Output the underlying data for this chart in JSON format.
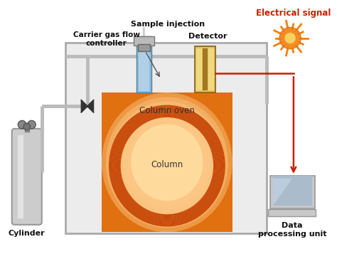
{
  "labels": {
    "carrier": "Carrier gas flow\ncontroller",
    "sample": "Sample injection",
    "detector": "Detector",
    "electrical": "Electrical signal",
    "column_oven": "Column oven",
    "column": "Column",
    "cylinder": "Cylinder",
    "data_unit": "Data\nprocessing unit"
  },
  "colors": {
    "oven_light": "#FDDCAA",
    "oven_mid": "#F5A030",
    "oven_dark": "#E07010",
    "column_coil": "#C84B0A",
    "detector_gold": "#E8C060",
    "detector_stripe": "#A07820",
    "detector_dark": "#806010",
    "sample_blue_light": "#C8DFF0",
    "sample_blue": "#90BBD8",
    "sample_blue_dark": "#5080A0",
    "pipe_gray": "#BBBBBB",
    "pipe_outline": "#999999",
    "cylinder_body": "#CCCCCC",
    "cylinder_dark": "#999999",
    "computer_gray": "#C8C8C8",
    "computer_screen": "#AABBCC",
    "computer_screen2": "#8899BB",
    "sun_orange": "#F08010",
    "sun_center": "#FFD060",
    "electrical_red": "#CC2000",
    "valve_dark": "#333333",
    "box_fill": "#ECECEC",
    "box_outline": "#AAAAAA",
    "white": "#FFFFFF",
    "arrow_gray": "#CCCCCC"
  },
  "figsize": [
    4.74,
    3.57
  ],
  "dpi": 100
}
